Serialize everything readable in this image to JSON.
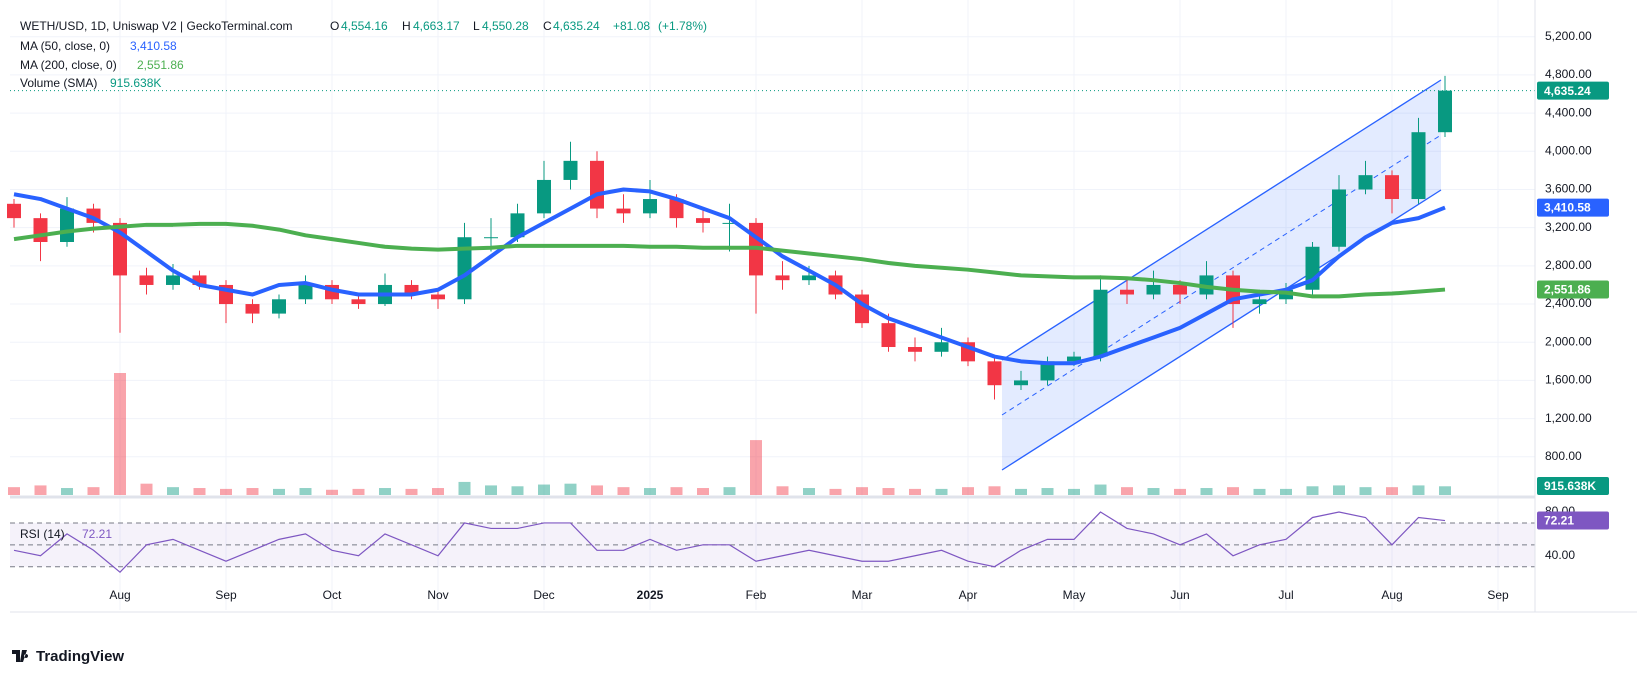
{
  "header": {
    "symbol": "WETH/USD, 1D, Uniswap V2 | GeckoTerminal.com",
    "o": "O",
    "open": {
      "value": 4554.16,
      "label": "4,554.16"
    },
    "h": "H",
    "high": {
      "value": 4663.17,
      "label": "4,663.17"
    },
    "l": "L",
    "low": {
      "value": 4550.28,
      "label": "4,550.28"
    },
    "c": "C",
    "close": {
      "value": 4635.24,
      "label": "4,635.24"
    },
    "change": {
      "value": 81.08,
      "label": "+81.08"
    },
    "change_pct": {
      "value": 1.78,
      "label": "(+1.78%)"
    }
  },
  "volume_sma": {
    "name": "Volume (SMA)",
    "value": 915638,
    "label": "915.638K"
  },
  "rsi_name": "RSI (14)",
  "brand": "TradingView",
  "chart_data": {
    "type": "candlestick",
    "categories": [
      null,
      null,
      null,
      null,
      "Aug",
      null,
      null,
      null,
      "Sep",
      null,
      null,
      null,
      "Oct",
      null,
      null,
      null,
      "Nov",
      null,
      null,
      null,
      "Dec",
      null,
      null,
      null,
      "2025",
      null,
      null,
      null,
      "Feb",
      null,
      null,
      null,
      "Mar",
      null,
      null,
      null,
      "Apr",
      null,
      null,
      null,
      "May",
      null,
      null,
      null,
      "Jun",
      null,
      null,
      null,
      "Jul",
      null,
      null,
      null,
      "Aug",
      null,
      null,
      null,
      "Sep",
      null
    ],
    "open": [
      3450,
      3300,
      3050,
      3400,
      3250,
      2700,
      2600,
      2700,
      2600,
      2400,
      2300,
      2450,
      2600,
      2450,
      2400,
      2600,
      2500,
      2450,
      3100,
      3100,
      3350,
      3700,
      3900,
      3400,
      3350,
      3500,
      3300,
      3250,
      3250,
      2700,
      2650,
      2700,
      2500,
      2200,
      1950,
      1900,
      2000,
      1800,
      1550,
      1600,
      1800,
      1850,
      2550,
      2500,
      2600,
      2500,
      2700,
      2400,
      2450,
      2550,
      3000,
      3600,
      3750,
      3500,
      4200,
      null,
      null,
      null
    ],
    "high": [
      3500,
      3350,
      3520,
      3450,
      3300,
      2780,
      2820,
      2750,
      2650,
      2450,
      2500,
      2700,
      2650,
      2500,
      2720,
      2650,
      2550,
      3250,
      3300,
      3450,
      3900,
      4100,
      4000,
      3550,
      3700,
      3550,
      3400,
      3450,
      3300,
      2850,
      2800,
      2750,
      2550,
      2300,
      2050,
      2150,
      2050,
      1850,
      1700,
      1850,
      1900,
      2700,
      2650,
      2750,
      2650,
      2850,
      2750,
      2550,
      2620,
      3050,
      3750,
      3900,
      3800,
      4350,
      4790,
      null,
      null,
      null
    ],
    "low": [
      3200,
      2850,
      3000,
      3150,
      2100,
      2500,
      2550,
      2550,
      2200,
      2200,
      2250,
      2400,
      2400,
      2350,
      2380,
      2450,
      2350,
      2400,
      2950,
      3050,
      3300,
      3600,
      3300,
      3250,
      3300,
      3200,
      3150,
      2950,
      2300,
      2550,
      2600,
      2450,
      2150,
      1900,
      1800,
      1850,
      1750,
      1400,
      1500,
      1550,
      1750,
      1800,
      2400,
      2450,
      2400,
      2450,
      2150,
      2300,
      2400,
      2500,
      2950,
      3550,
      3350,
      3450,
      4150,
      null,
      null,
      null
    ],
    "close": [
      3300,
      3050,
      3400,
      3250,
      2700,
      2600,
      2700,
      2600,
      2400,
      2300,
      2450,
      2600,
      2450,
      2400,
      2600,
      2500,
      2450,
      3100,
      3100,
      3350,
      3700,
      3900,
      3400,
      3350,
      3500,
      3300,
      3250,
      3250,
      2700,
      2650,
      2700,
      2500,
      2200,
      1950,
      1900,
      2000,
      1800,
      1550,
      1600,
      1800,
      1850,
      2550,
      2500,
      2600,
      2500,
      2700,
      2400,
      2450,
      2550,
      3000,
      3600,
      3750,
      3500,
      4200,
      4635.24,
      null,
      null,
      null
    ],
    "up_color": "#089981",
    "down_color": "#f23645",
    "volume": [
      900000,
      1100000,
      800000,
      900000,
      14000000,
      1300000,
      900000,
      800000,
      700000,
      800000,
      700000,
      800000,
      600000,
      700000,
      800000,
      700000,
      800000,
      1500000,
      1100000,
      1000000,
      1200000,
      1300000,
      1100000,
      900000,
      800000,
      900000,
      800000,
      900000,
      6300000,
      1000000,
      800000,
      700000,
      900000,
      800000,
      700000,
      700000,
      900000,
      1000000,
      700000,
      800000,
      700000,
      1200000,
      900000,
      800000,
      700000,
      800000,
      900000,
      700000,
      700000,
      1000000,
      1100000,
      900000,
      900000,
      1100000,
      1000000,
      null,
      null,
      null
    ],
    "series": [
      {
        "name": "MA (50, close, 0)",
        "color": "#2962ff",
        "values": [
          3550,
          3500,
          3400,
          3300,
          3150,
          2950,
          2750,
          2600,
          2550,
          2500,
          2600,
          2620,
          2550,
          2500,
          2500,
          2500,
          2550,
          2700,
          2900,
          3100,
          3250,
          3400,
          3550,
          3600,
          3580,
          3500,
          3400,
          3300,
          3100,
          2900,
          2750,
          2600,
          2400,
          2250,
          2150,
          2050,
          1950,
          1850,
          1800,
          1780,
          1780,
          1850,
          1950,
          2050,
          2150,
          2300,
          2450,
          2500,
          2550,
          2650,
          2900,
          3100,
          3250,
          3300,
          3410.58,
          null,
          null,
          null
        ],
        "value_labels": [
          null,
          null,
          null,
          null,
          null,
          null,
          null,
          null,
          null,
          null,
          null,
          null,
          null,
          null,
          null,
          null,
          null,
          null,
          null,
          null,
          null,
          null,
          null,
          null,
          null,
          null,
          null,
          null,
          null,
          null,
          null,
          null,
          null,
          null,
          null,
          null,
          null,
          null,
          null,
          null,
          null,
          null,
          null,
          null,
          null,
          null,
          null,
          null,
          null,
          null,
          null,
          null,
          null,
          null,
          "3,410.58",
          null,
          null,
          null
        ]
      },
      {
        "name": "MA (200, close, 0)",
        "color": "#4caf50",
        "values": [
          3080,
          3120,
          3160,
          3190,
          3210,
          3230,
          3230,
          3240,
          3240,
          3220,
          3180,
          3120,
          3080,
          3040,
          3000,
          2980,
          2970,
          2980,
          2990,
          3010,
          3010,
          3010,
          3010,
          3010,
          3000,
          3000,
          2990,
          2990,
          2990,
          2960,
          2930,
          2900,
          2870,
          2830,
          2800,
          2780,
          2760,
          2730,
          2700,
          2690,
          2680,
          2680,
          2670,
          2650,
          2620,
          2580,
          2550,
          2530,
          2520,
          2480,
          2480,
          2500,
          2510,
          2530,
          2551.86,
          null,
          null,
          null
        ],
        "value_labels": [
          null,
          null,
          null,
          null,
          null,
          null,
          null,
          null,
          null,
          null,
          null,
          null,
          null,
          null,
          null,
          null,
          null,
          null,
          null,
          null,
          null,
          null,
          null,
          null,
          null,
          null,
          null,
          null,
          null,
          null,
          null,
          null,
          null,
          null,
          null,
          null,
          null,
          null,
          null,
          null,
          null,
          null,
          null,
          null,
          null,
          null,
          null,
          null,
          null,
          null,
          null,
          null,
          null,
          null,
          "2,551.86",
          null,
          null,
          null
        ]
      }
    ],
    "ylim": [
      400,
      5480
    ],
    "yticks": [
      {
        "value": 800,
        "label": "800.00"
      },
      {
        "value": 1200,
        "label": "1,200.00"
      },
      {
        "value": 1600,
        "label": "1,600.00"
      },
      {
        "value": 2000,
        "label": "2,000.00"
      },
      {
        "value": 2400,
        "label": "2,400.00"
      },
      {
        "value": 2800,
        "label": "2,800.00"
      },
      {
        "value": 3200,
        "label": "3,200.00"
      },
      {
        "value": 3600,
        "label": "3,600.00"
      },
      {
        "value": 4000,
        "label": "4,000.00"
      },
      {
        "value": 4400,
        "label": "4,400.00"
      },
      {
        "value": 4800,
        "label": "4,800.00"
      },
      {
        "value": 5200,
        "label": "5,200.00"
      }
    ],
    "grid": true,
    "rsi": {
      "color": "#7e57c2",
      "values": [
        45,
        40,
        60,
        45,
        25,
        50,
        55,
        45,
        35,
        45,
        55,
        60,
        45,
        40,
        60,
        50,
        40,
        70,
        65,
        65,
        70,
        70,
        45,
        45,
        55,
        45,
        50,
        50,
        35,
        40,
        45,
        40,
        35,
        35,
        40,
        45,
        35,
        30,
        45,
        55,
        55,
        80,
        65,
        60,
        50,
        60,
        40,
        50,
        55,
        75,
        80,
        75,
        50,
        75,
        72.21,
        null,
        null,
        null
      ],
      "value_labels": [
        null,
        null,
        null,
        null,
        null,
        null,
        null,
        null,
        null,
        null,
        null,
        null,
        null,
        null,
        null,
        null,
        null,
        null,
        null,
        null,
        null,
        null,
        null,
        null,
        null,
        null,
        null,
        null,
        null,
        null,
        null,
        null,
        null,
        null,
        null,
        null,
        null,
        null,
        null,
        null,
        null,
        null,
        null,
        null,
        null,
        null,
        null,
        null,
        null,
        null,
        null,
        null,
        null,
        null,
        "72.21",
        null,
        null,
        null
      ],
      "ylim": [
        16,
        91
      ],
      "yticks": [
        {
          "value": 40,
          "label": "40.00"
        },
        {
          "value": 80,
          "label": "80.00"
        }
      ],
      "levels": [
        30,
        50,
        70
      ]
    }
  }
}
